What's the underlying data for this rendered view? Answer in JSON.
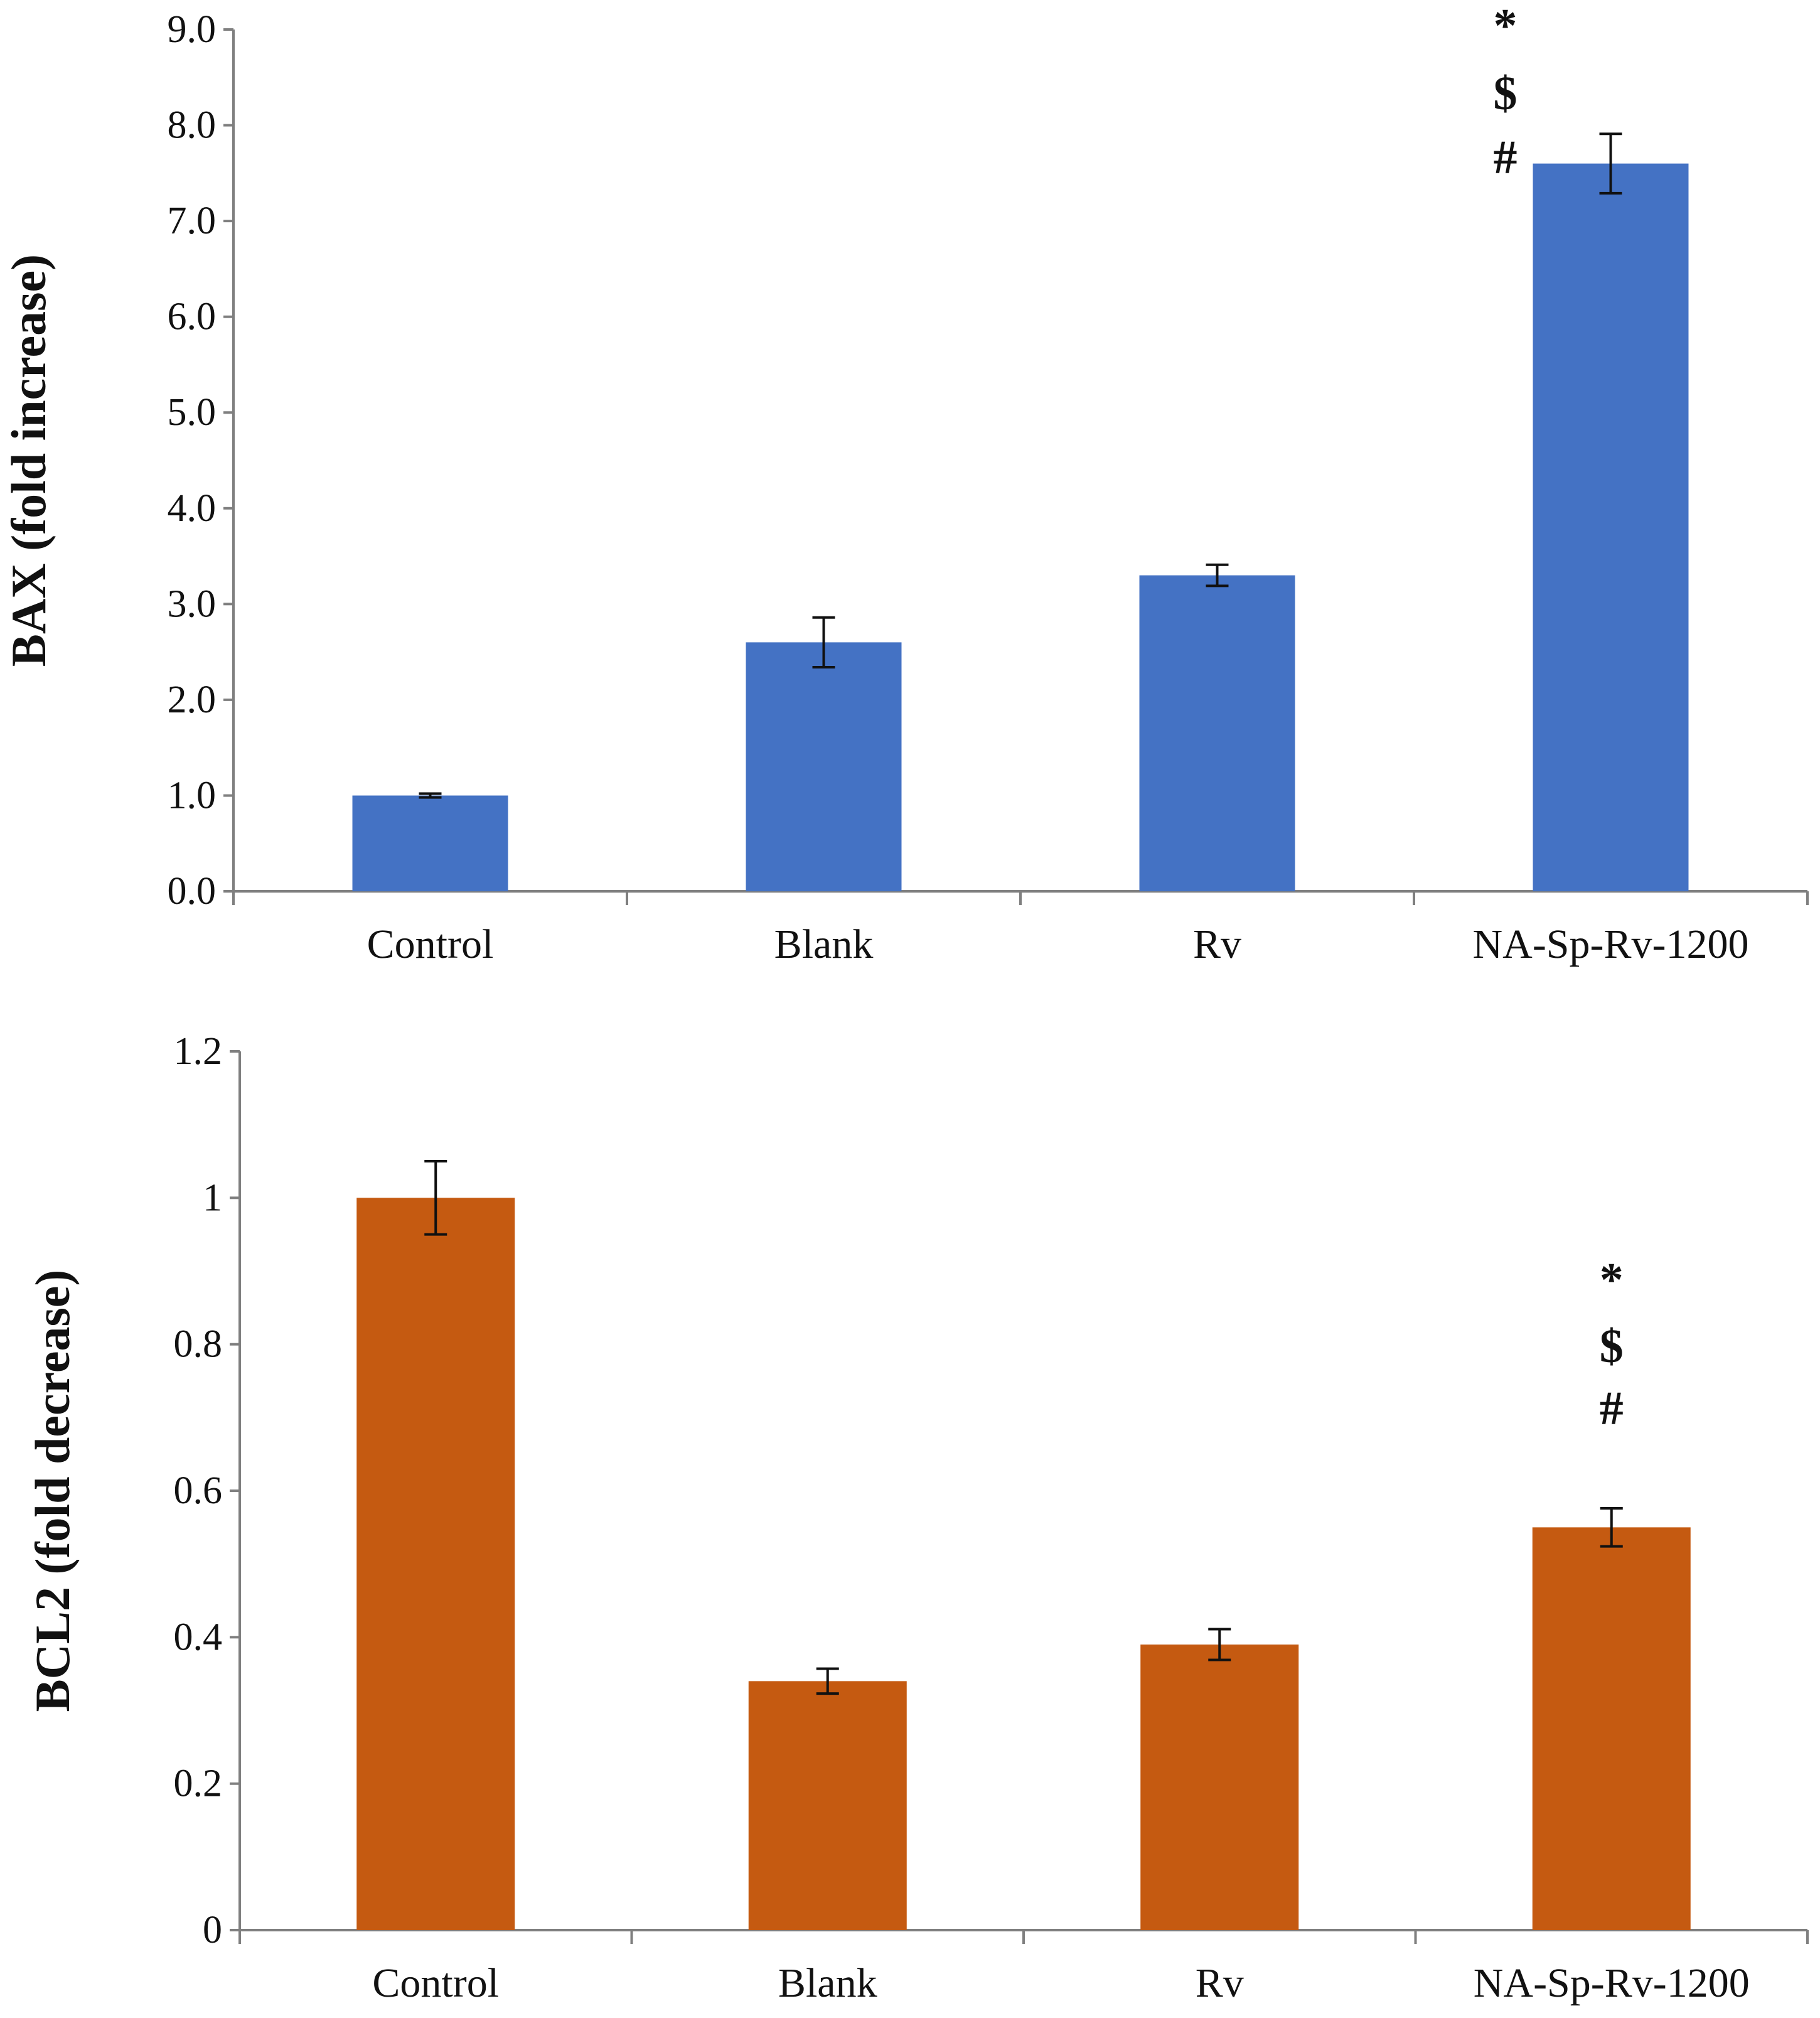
{
  "chart_data": [
    {
      "type": "bar",
      "title": "",
      "xlabel": "",
      "ylabel": "BAX (fold increase)",
      "categories": [
        "Control",
        "Blank",
        "Rv",
        "NA-Sp-Rv-1200"
      ],
      "values": [
        1.0,
        2.6,
        3.3,
        7.6
      ],
      "errors": [
        0.02,
        0.26,
        0.11,
        0.31
      ],
      "ylim": [
        0,
        9
      ],
      "yticks": [
        0,
        1,
        2,
        3,
        4,
        5,
        6,
        7,
        8,
        9
      ],
      "ytick_labels": [
        "0.0",
        "1.0",
        "2.0",
        "3.0",
        "4.0",
        "5.0",
        "6.0",
        "7.0",
        "8.0",
        "9.0"
      ],
      "color": "#4472c4",
      "grid": false,
      "annotations": [
        {
          "category": "NA-Sp-Rv-1200",
          "symbols": [
            "*",
            "$",
            "#"
          ]
        }
      ]
    },
    {
      "type": "bar",
      "title": "",
      "xlabel": "",
      "ylabel": "BCL2 (fold decrease)",
      "categories": [
        "Control",
        "Blank",
        "Rv",
        "NA-Sp-Rv-1200"
      ],
      "values": [
        1.0,
        0.34,
        0.39,
        0.55
      ],
      "errors": [
        0.05,
        0.017,
        0.021,
        0.026
      ],
      "ylim": [
        0,
        1.2
      ],
      "yticks": [
        0,
        0.2,
        0.4,
        0.6,
        0.8,
        1.0,
        1.2
      ],
      "ytick_labels": [
        "0",
        "0.2",
        "0.4",
        "0.6",
        "0.8",
        "1",
        "1.2"
      ],
      "color": "#c55a11",
      "grid": false,
      "annotations": [
        {
          "category": "NA-Sp-Rv-1200",
          "symbols": [
            "*",
            "$",
            "#"
          ]
        }
      ]
    }
  ]
}
